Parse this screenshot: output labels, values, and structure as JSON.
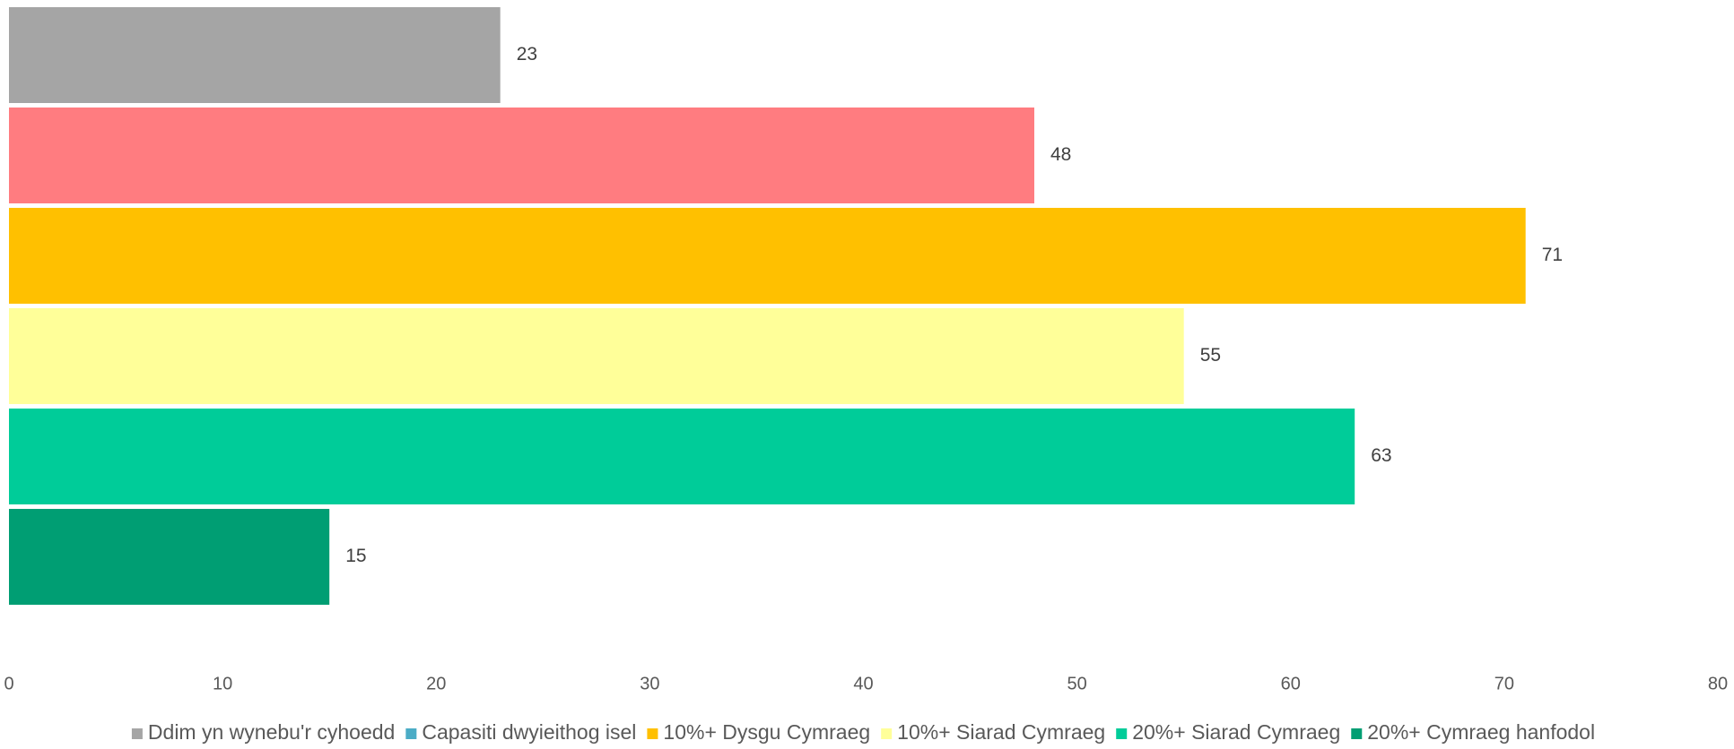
{
  "chart_data": {
    "type": "bar",
    "orientation": "horizontal",
    "series": [
      {
        "name": "Ddim yn wynebu'r cyhoedd",
        "color": "#a5a5a5",
        "bar_color": "#a5a5a5",
        "values": [
          23
        ]
      },
      {
        "name": "Capasiti dwyieithog isel",
        "color": "#4bacc6",
        "bar_color": "#ff7c80",
        "values": [
          48
        ]
      },
      {
        "name": "10%+ Dysgu Cymraeg",
        "color": "#ffc000",
        "bar_color": "#ffc000",
        "values": [
          71
        ]
      },
      {
        "name": "10%+ Siarad Cymraeg",
        "color": "#ffff99",
        "bar_color": "#ffff99",
        "values": [
          55
        ]
      },
      {
        "name": "20%+ Siarad Cymraeg",
        "color": "#00cc99",
        "bar_color": "#00cc99",
        "values": [
          63
        ]
      },
      {
        "name": "20%+ Cymraeg hanfodol",
        "color": "#009e73",
        "bar_color": "#009e73",
        "values": [
          15
        ]
      }
    ],
    "xlim": [
      0,
      80
    ],
    "xticks": [
      0,
      10,
      20,
      30,
      40,
      50,
      60,
      70,
      80
    ],
    "grid": false,
    "legend": "bottom"
  }
}
